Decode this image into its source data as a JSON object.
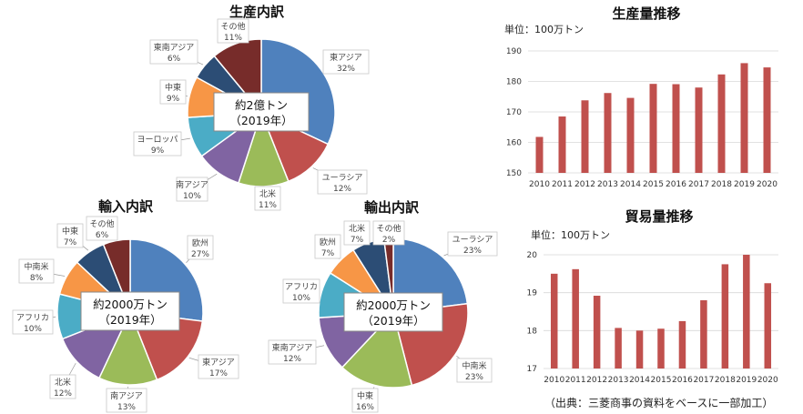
{
  "source_note": "（出典：三菱商事の資料をベースに一部加工）",
  "chart_data": [
    {
      "type": "pie",
      "title": "生産内訳",
      "center_label": [
        "約2億トン",
        "（2019年）"
      ],
      "slices": [
        {
          "label": "東アジア",
          "value": 32,
          "display": "32%",
          "color": "#4F81BD"
        },
        {
          "label": "ユーラシア",
          "value": 12,
          "display": "12%",
          "color": "#C0504D"
        },
        {
          "label": "北米",
          "value": 11,
          "display": "11%",
          "color": "#9BBB59"
        },
        {
          "label": "南アジア",
          "value": 10,
          "display": "10%",
          "color": "#8064A2"
        },
        {
          "label": "ヨーロッパ",
          "value": 9,
          "display": "9%",
          "color": "#4BACC6"
        },
        {
          "label": "中東",
          "value": 9,
          "display": "9%",
          "color": "#F79646"
        },
        {
          "label": "東南アジア",
          "value": 6,
          "display": "6%",
          "color": "#2C4D75"
        },
        {
          "label": "その他",
          "value": 11,
          "display": "11%",
          "color": "#772C2A"
        }
      ]
    },
    {
      "type": "pie",
      "title": "輸入内訳",
      "center_label": [
        "約2000万トン",
        "（2019年）"
      ],
      "slices": [
        {
          "label": "欧州",
          "value": 27,
          "display": "27%",
          "color": "#4F81BD"
        },
        {
          "label": "東アジア",
          "value": 17,
          "display": "17%",
          "color": "#C0504D"
        },
        {
          "label": "南アジア",
          "value": 13,
          "display": "13%",
          "color": "#9BBB59"
        },
        {
          "label": "北米",
          "value": 12,
          "display": "12%",
          "color": "#8064A2"
        },
        {
          "label": "アフリカ",
          "value": 10,
          "display": "10%",
          "color": "#4BACC6"
        },
        {
          "label": "中南米",
          "value": 8,
          "display": "8%",
          "color": "#F79646"
        },
        {
          "label": "中東",
          "value": 7,
          "display": "7%",
          "color": "#2C4D75"
        },
        {
          "label": "その他",
          "value": 6,
          "display": "6%",
          "color": "#772C2A"
        }
      ]
    },
    {
      "type": "pie",
      "title": "輸出内訳",
      "center_label": [
        "約2000万トン",
        "（2019年）"
      ],
      "slices": [
        {
          "label": "ユーラシア",
          "value": 23,
          "display": "23%",
          "color": "#4F81BD"
        },
        {
          "label": "中南米",
          "value": 23,
          "display": "23%",
          "color": "#C0504D"
        },
        {
          "label": "中東",
          "value": 16,
          "display": "16%",
          "color": "#9BBB59"
        },
        {
          "label": "東南アジア",
          "value": 12,
          "display": "12%",
          "color": "#8064A2"
        },
        {
          "label": "アフリカ",
          "value": 10,
          "display": "10%",
          "color": "#4BACC6"
        },
        {
          "label": "欧州",
          "value": 7,
          "display": "7%",
          "color": "#F79646"
        },
        {
          "label": "北米",
          "value": 7,
          "display": "7%",
          "color": "#2C4D75"
        },
        {
          "label": "その他",
          "value": 2,
          "display": "2%",
          "color": "#772C2A"
        }
      ]
    },
    {
      "type": "bar",
      "title": "生産量推移",
      "unit_label": "単位：100万トン",
      "categories": [
        "2010",
        "2011",
        "2012",
        "2013",
        "2014",
        "2015",
        "2016",
        "2017",
        "2018",
        "2019",
        "2020"
      ],
      "values": [
        161.8,
        168.5,
        173.8,
        176.2,
        174.6,
        179.2,
        179.1,
        178.0,
        182.3,
        186.0,
        184.6
      ],
      "ylim": [
        150,
        190
      ],
      "yticks": [
        150,
        160,
        170,
        180,
        190
      ],
      "color": "#C0504D",
      "grid": true
    },
    {
      "type": "bar",
      "title": "貿易量推移",
      "unit_label": "単位：100万トン",
      "categories": [
        "2010",
        "2011",
        "2012",
        "2013",
        "2014",
        "2015",
        "2016",
        "2017",
        "2018",
        "2019",
        "2020"
      ],
      "values": [
        19.5,
        19.62,
        18.92,
        18.07,
        18.0,
        18.05,
        18.25,
        18.8,
        19.75,
        20.0,
        19.25
      ],
      "ylim": [
        17,
        20
      ],
      "yticks": [
        17,
        18,
        19,
        20
      ],
      "color": "#C0504D",
      "grid": true
    }
  ]
}
